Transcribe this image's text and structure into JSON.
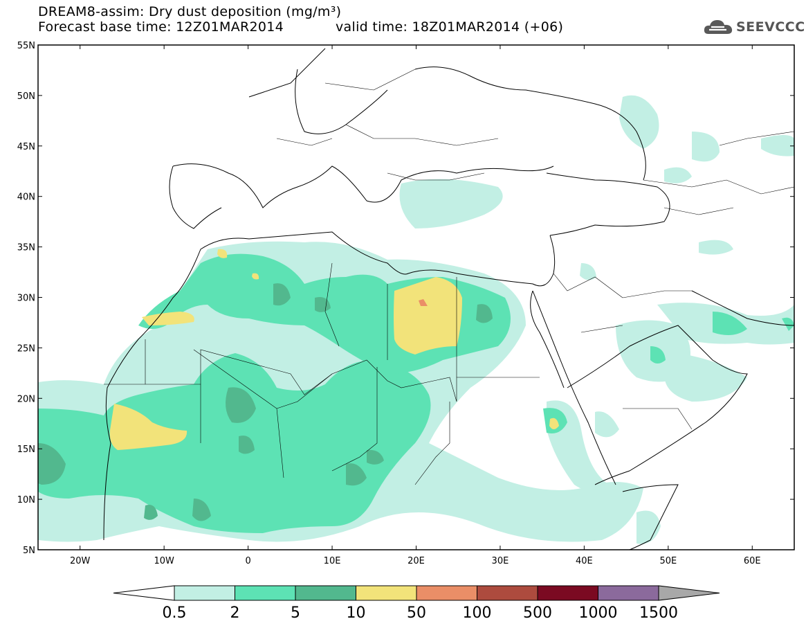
{
  "header": {
    "title": "DREAM8-assim: Dry dust deposition (mg/m³)",
    "base_time": "Forecast base time: 12Z01MAR2014",
    "valid_time": "valid time: 18Z01MAR2014 (+06)"
  },
  "logo": {
    "text": "SEEVCCC",
    "icon": "cloud-icon"
  },
  "map": {
    "lat_labels": [
      "55N",
      "50N",
      "45N",
      "40N",
      "35N",
      "30N",
      "25N",
      "20N",
      "15N",
      "10N",
      "5N"
    ],
    "lon_labels": [
      "20W",
      "10W",
      "0",
      "10E",
      "20E",
      "30E",
      "40E",
      "50E",
      "60E"
    ],
    "lon_range": [
      -25,
      65
    ],
    "lat_range": [
      5,
      55
    ],
    "projection": "cylindrical"
  },
  "colorbar": {
    "levels": [
      "0.5",
      "2",
      "5",
      "10",
      "50",
      "100",
      "500",
      "1000",
      "1500"
    ],
    "colors": [
      "#ffffff",
      "#c2efe4",
      "#5de2b4",
      "#52b88e",
      "#f2e37a",
      "#ea8e67",
      "#ad4b3e",
      "#7b0a22",
      "#8b6a9c",
      "#a8a8a8"
    ]
  }
}
